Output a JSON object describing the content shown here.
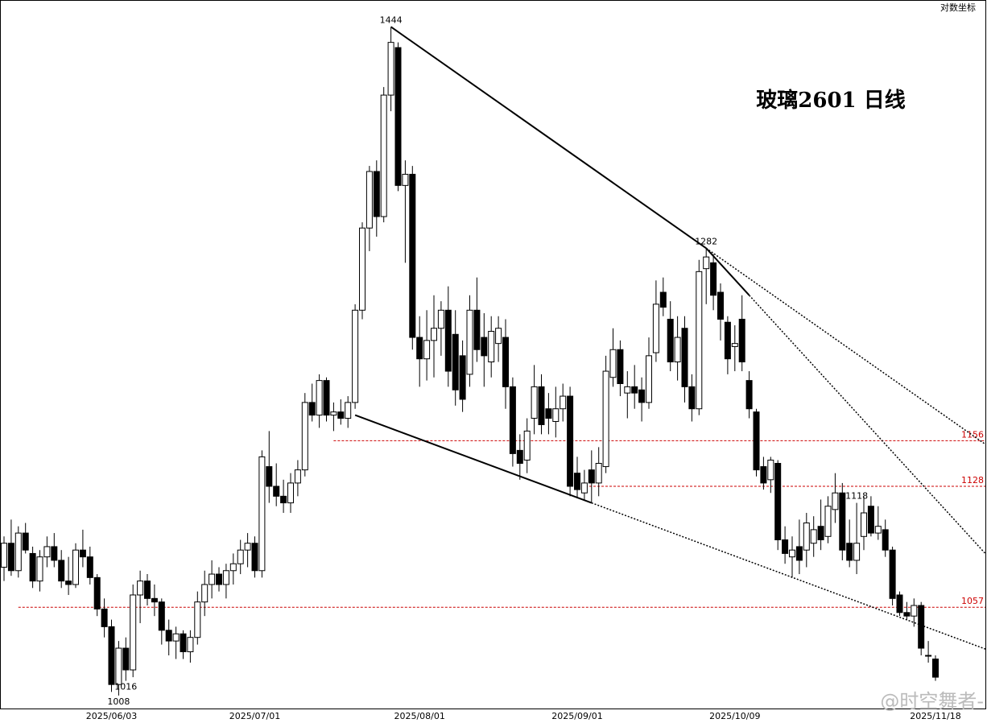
{
  "chart_data": {
    "type": "candlestick",
    "title": "玻璃2601  日线",
    "scale_label": "对数坐标",
    "watermark": "@时空舞者-",
    "log_scale": true,
    "ylim": [
      1001,
      1465
    ],
    "categories": [
      null,
      null,
      null,
      null,
      null,
      null,
      null,
      null,
      null,
      null,
      null,
      null,
      null,
      null,
      null,
      "2025/06/03",
      null,
      null,
      null,
      null,
      null,
      null,
      null,
      null,
      null,
      null,
      null,
      null,
      null,
      null,
      null,
      null,
      null,
      null,
      null,
      "2025/07/01",
      null,
      null,
      null,
      null,
      null,
      null,
      null,
      null,
      null,
      null,
      null,
      null,
      null,
      null,
      null,
      null,
      null,
      null,
      null,
      null,
      null,
      null,
      "2025/08/01",
      null,
      null,
      null,
      null,
      null,
      null,
      null,
      null,
      null,
      null,
      null,
      null,
      null,
      null,
      null,
      null,
      null,
      null,
      null,
      null,
      null,
      "2025/09/01",
      null,
      null,
      null,
      null,
      null,
      null,
      null,
      null,
      null,
      null,
      null,
      null,
      null,
      null,
      null,
      null,
      null,
      null,
      null,
      null,
      null,
      "2025/10/09",
      null,
      null,
      null,
      null,
      null,
      null,
      null,
      null,
      null,
      null,
      null,
      null,
      null,
      null,
      null,
      null,
      null,
      null,
      null,
      null,
      null,
      null,
      null,
      null,
      null,
      null,
      null,
      "2025/11/18"
    ],
    "ohlc": [
      [
        1080,
        1098,
        1072,
        1094
      ],
      [
        1094,
        1108,
        1075,
        1078
      ],
      [
        1078,
        1104,
        1074,
        1100
      ],
      [
        1100,
        1106,
        1088,
        1090
      ],
      [
        1088,
        1092,
        1068,
        1072
      ],
      [
        1072,
        1090,
        1066,
        1086
      ],
      [
        1086,
        1098,
        1080,
        1092
      ],
      [
        1092,
        1100,
        1080,
        1084
      ],
      [
        1084,
        1090,
        1068,
        1072
      ],
      [
        1072,
        1086,
        1064,
        1070
      ],
      [
        1070,
        1094,
        1068,
        1090
      ],
      [
        1090,
        1102,
        1080,
        1086
      ],
      [
        1086,
        1092,
        1070,
        1074
      ],
      [
        1074,
        1076,
        1052,
        1056
      ],
      [
        1056,
        1062,
        1040,
        1046
      ],
      [
        1046,
        1050,
        1010,
        1014
      ],
      [
        1014,
        1038,
        1008,
        1034
      ],
      [
        1034,
        1040,
        1016,
        1022
      ],
      [
        1022,
        1070,
        1018,
        1064
      ],
      [
        1064,
        1078,
        1048,
        1072
      ],
      [
        1072,
        1076,
        1058,
        1062
      ],
      [
        1062,
        1070,
        1052,
        1060
      ],
      [
        1060,
        1062,
        1036,
        1044
      ],
      [
        1044,
        1050,
        1030,
        1038
      ],
      [
        1038,
        1046,
        1028,
        1042
      ],
      [
        1042,
        1044,
        1028,
        1032
      ],
      [
        1032,
        1044,
        1026,
        1040
      ],
      [
        1040,
        1066,
        1036,
        1060
      ],
      [
        1060,
        1078,
        1052,
        1070
      ],
      [
        1070,
        1084,
        1062,
        1076
      ],
      [
        1076,
        1080,
        1066,
        1070
      ],
      [
        1070,
        1082,
        1062,
        1078
      ],
      [
        1078,
        1088,
        1070,
        1082
      ],
      [
        1082,
        1096,
        1076,
        1090
      ],
      [
        1090,
        1100,
        1080,
        1094
      ],
      [
        1094,
        1098,
        1074,
        1078
      ],
      [
        1078,
        1150,
        1074,
        1146
      ],
      [
        1140,
        1162,
        1118,
        1128
      ],
      [
        1128,
        1142,
        1116,
        1122
      ],
      [
        1122,
        1132,
        1112,
        1118
      ],
      [
        1118,
        1136,
        1112,
        1130
      ],
      [
        1130,
        1144,
        1122,
        1138
      ],
      [
        1138,
        1186,
        1134,
        1180
      ],
      [
        1180,
        1192,
        1168,
        1172
      ],
      [
        1172,
        1198,
        1164,
        1194
      ],
      [
        1194,
        1196,
        1168,
        1172
      ],
      [
        1172,
        1180,
        1162,
        1174
      ],
      [
        1174,
        1182,
        1166,
        1170
      ],
      [
        1170,
        1184,
        1164,
        1180
      ],
      [
        1180,
        1244,
        1176,
        1240
      ],
      [
        1240,
        1300,
        1234,
        1296
      ],
      [
        1296,
        1340,
        1280,
        1336
      ],
      [
        1336,
        1344,
        1290,
        1304
      ],
      [
        1304,
        1398,
        1300,
        1392
      ],
      [
        1392,
        1444,
        1380,
        1432
      ],
      [
        1428,
        1432,
        1322,
        1326
      ],
      [
        1326,
        1344,
        1272,
        1334
      ],
      [
        1334,
        1340,
        1214,
        1222
      ],
      [
        1222,
        1236,
        1190,
        1208
      ],
      [
        1208,
        1240,
        1194,
        1220
      ],
      [
        1220,
        1250,
        1196,
        1228
      ],
      [
        1228,
        1246,
        1210,
        1240
      ],
      [
        1240,
        1256,
        1190,
        1200
      ],
      [
        1224,
        1240,
        1178,
        1188
      ],
      [
        1210,
        1220,
        1174,
        1182
      ],
      [
        1198,
        1250,
        1190,
        1240
      ],
      [
        1240,
        1262,
        1206,
        1214
      ],
      [
        1222,
        1238,
        1190,
        1210
      ],
      [
        1206,
        1236,
        1196,
        1226
      ],
      [
        1218,
        1236,
        1206,
        1228
      ],
      [
        1222,
        1234,
        1176,
        1190
      ],
      [
        1190,
        1196,
        1140,
        1148
      ],
      [
        1150,
        1160,
        1132,
        1142
      ],
      [
        1144,
        1170,
        1136,
        1162
      ],
      [
        1170,
        1204,
        1160,
        1190
      ],
      [
        1190,
        1198,
        1160,
        1166
      ],
      [
        1176,
        1186,
        1160,
        1170
      ],
      [
        1168,
        1190,
        1158,
        1176
      ],
      [
        1176,
        1192,
        1168,
        1184
      ],
      [
        1184,
        1190,
        1122,
        1128
      ],
      [
        1136,
        1146,
        1121,
        1126
      ],
      [
        1124,
        1138,
        1120,
        1130
      ],
      [
        1138,
        1150,
        1118,
        1130
      ],
      [
        1130,
        1152,
        1122,
        1142
      ],
      [
        1140,
        1210,
        1136,
        1200
      ],
      [
        1196,
        1228,
        1190,
        1214
      ],
      [
        1214,
        1220,
        1184,
        1192
      ],
      [
        1186,
        1200,
        1170,
        1190
      ],
      [
        1190,
        1204,
        1176,
        1186
      ],
      [
        1188,
        1196,
        1168,
        1180
      ],
      [
        1180,
        1222,
        1176,
        1210
      ],
      [
        1212,
        1260,
        1206,
        1244
      ],
      [
        1252,
        1262,
        1236,
        1242
      ],
      [
        1234,
        1246,
        1200,
        1206
      ],
      [
        1206,
        1236,
        1194,
        1222
      ],
      [
        1228,
        1236,
        1180,
        1190
      ],
      [
        1190,
        1198,
        1168,
        1176
      ],
      [
        1176,
        1274,
        1172,
        1266
      ],
      [
        1268,
        1282,
        1244,
        1276
      ],
      [
        1272,
        1278,
        1240,
        1250
      ],
      [
        1252,
        1258,
        1220,
        1234
      ],
      [
        1232,
        1236,
        1198,
        1208
      ],
      [
        1216,
        1230,
        1200,
        1218
      ],
      [
        1234,
        1250,
        1200,
        1206
      ],
      [
        1194,
        1200,
        1170,
        1176
      ],
      [
        1174,
        1176,
        1134,
        1138
      ],
      [
        1140,
        1146,
        1126,
        1130
      ],
      [
        1132,
        1146,
        1124,
        1144
      ],
      [
        1142,
        1144,
        1090,
        1096
      ],
      [
        1096,
        1104,
        1082,
        1088
      ],
      [
        1086,
        1098,
        1074,
        1090
      ],
      [
        1092,
        1108,
        1076,
        1084
      ],
      [
        1090,
        1112,
        1080,
        1106
      ],
      [
        1094,
        1110,
        1086,
        1102
      ],
      [
        1104,
        1120,
        1090,
        1096
      ],
      [
        1098,
        1122,
        1094,
        1116
      ],
      [
        1114,
        1136,
        1106,
        1124
      ],
      [
        1124,
        1130,
        1084,
        1090
      ],
      [
        1094,
        1108,
        1080,
        1084
      ],
      [
        1084,
        1118,
        1076,
        1094
      ],
      [
        1098,
        1122,
        1090,
        1112
      ],
      [
        1116,
        1122,
        1098,
        1100
      ],
      [
        1100,
        1116,
        1096,
        1104
      ],
      [
        1102,
        1108,
        1086,
        1090
      ],
      [
        1090,
        1092,
        1058,
        1062
      ],
      [
        1064,
        1066,
        1052,
        1054
      ],
      [
        1054,
        1060,
        1050,
        1052
      ],
      [
        1052,
        1062,
        1046,
        1058
      ],
      [
        1058,
        1060,
        1030,
        1034
      ],
      [
        1030,
        1038,
        1026,
        1030
      ],
      [
        1028,
        1030,
        1016,
        1018
      ]
    ],
    "levels": [
      1156,
      1128,
      1057
    ],
    "point_labels": [
      1444,
      1282,
      1118,
      1008,
      1016
    ],
    "trendlines": [
      [
        [
          54,
          1444
        ],
        [
          98,
          1282
        ]
      ],
      [
        [
          49,
          1172
        ],
        [
          82,
          1118
        ]
      ],
      [
        [
          98,
          1282
        ],
        [
          104,
          1250
        ]
      ]
    ]
  }
}
